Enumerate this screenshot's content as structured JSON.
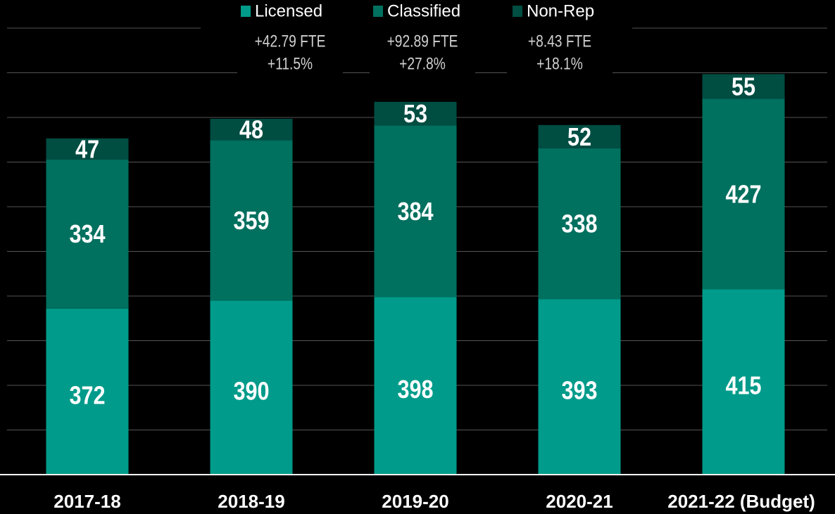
{
  "chart_data": {
    "type": "stacked_bar",
    "categories": [
      "2017-18",
      "2018-19",
      "2019-20",
      "2020-21",
      "2021-22 (Budget)"
    ],
    "series": [
      {
        "name": "Licensed",
        "color": "#009b8a",
        "values": [
          372,
          390,
          398,
          393,
          415
        ]
      },
      {
        "name": "Classified",
        "color": "#00705f",
        "values": [
          334,
          359,
          384,
          338,
          427
        ]
      },
      {
        "name": "Non-Rep",
        "color": "#004d42",
        "values": [
          47,
          48,
          53,
          52,
          55
        ]
      }
    ],
    "annotations": [
      {
        "lines": [
          "+42.79 FTE",
          "+11.5%"
        ]
      },
      {
        "lines": [
          "+92.89 FTE",
          "+27.8%"
        ]
      },
      {
        "lines": [
          "+8.43 FTE",
          "+18.1%"
        ]
      }
    ],
    "ylim": [
      0,
      1000
    ],
    "yticks": [
      0,
      100,
      200,
      300,
      400,
      500,
      600,
      700,
      800,
      900,
      1000
    ],
    "grid": true,
    "legend": "top"
  }
}
